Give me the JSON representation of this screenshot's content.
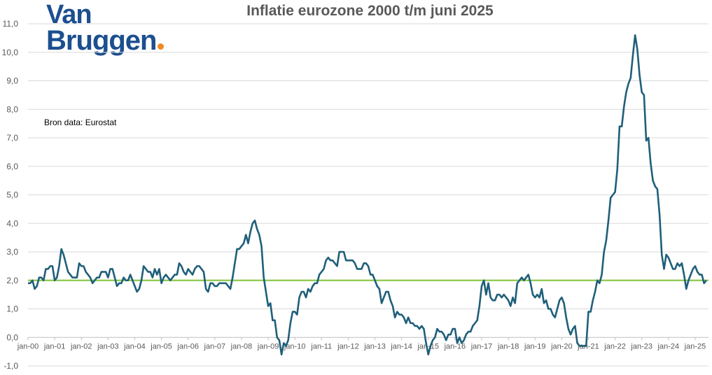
{
  "logo": {
    "line1": "Van",
    "line2": "Bruggen"
  },
  "source_note": "Bron data: Eurostat",
  "colors": {
    "series": "#1f5f7a",
    "target": "#8cc84b",
    "grid": "#d9d9d9",
    "logo": "#1c4f8f",
    "logo_dot": "#f08a24"
  },
  "chart_data": {
    "type": "line",
    "title": "Inflatie eurozone 2000 t/m juni 2025",
    "xlabel": "",
    "ylabel": "",
    "ylim": [
      -1,
      11
    ],
    "yticks": [
      "-1,0",
      "0,0",
      "1,0",
      "2,0",
      "3,0",
      "4,0",
      "5,0",
      "6,0",
      "7,0",
      "8,0",
      "9,0",
      "10,0",
      "11,0"
    ],
    "xticks": [
      "jan-00",
      "jan-01",
      "jan-02",
      "jan-03",
      "jan-04",
      "jan-05",
      "jan-06",
      "jan-07",
      "jan-08",
      "jan-09",
      "jan-10",
      "jan-11",
      "jan-12",
      "jan-13",
      "jan-14",
      "jan-15",
      "jan-16",
      "jan-17",
      "jan-18",
      "jan-19",
      "jan-20",
      "jan-21",
      "jan-22",
      "jan-23",
      "jan-24",
      "jan-25"
    ],
    "grid": true,
    "target_line": 2.0,
    "start": "2000-01",
    "series": [
      {
        "values": [
          1.9,
          1.9,
          2.0,
          1.7,
          1.8,
          2.1,
          2.1,
          2.0,
          2.4,
          2.4,
          2.5,
          2.5,
          2.0,
          2.1,
          2.5,
          3.1,
          2.9,
          2.6,
          2.3,
          2.2,
          2.1,
          2.1,
          2.1,
          2.6,
          2.5,
          2.5,
          2.3,
          2.2,
          2.1,
          1.9,
          2.0,
          2.1,
          2.1,
          2.3,
          2.3,
          2.3,
          2.1,
          2.4,
          2.4,
          2.1,
          1.8,
          1.9,
          1.9,
          2.1,
          2.0,
          2.0,
          2.2,
          2.0,
          1.8,
          1.6,
          1.7,
          2.0,
          2.5,
          2.4,
          2.3,
          2.3,
          2.1,
          2.4,
          2.2,
          2.4,
          1.9,
          2.1,
          2.2,
          2.1,
          2.0,
          2.1,
          2.2,
          2.2,
          2.6,
          2.5,
          2.3,
          2.2,
          2.4,
          2.3,
          2.2,
          2.4,
          2.5,
          2.5,
          2.4,
          2.3,
          1.7,
          1.6,
          1.9,
          1.9,
          1.8,
          1.8,
          1.9,
          1.9,
          1.9,
          1.9,
          1.8,
          1.7,
          2.1,
          2.6,
          3.1,
          3.1,
          3.2,
          3.3,
          3.6,
          3.3,
          3.7,
          4.0,
          4.1,
          3.8,
          3.6,
          3.2,
          2.1,
          1.6,
          1.1,
          1.2,
          0.6,
          0.6,
          0.0,
          -0.1,
          -0.6,
          -0.2,
          -0.3,
          -0.1,
          0.5,
          0.9,
          0.9,
          0.8,
          1.4,
          1.6,
          1.6,
          1.4,
          1.7,
          1.6,
          1.8,
          1.9,
          1.9,
          2.2,
          2.3,
          2.4,
          2.7,
          2.8,
          2.7,
          2.7,
          2.6,
          2.5,
          3.0,
          3.0,
          3.0,
          2.7,
          2.7,
          2.7,
          2.7,
          2.6,
          2.4,
          2.4,
          2.4,
          2.6,
          2.6,
          2.5,
          2.2,
          2.2,
          2.0,
          1.8,
          1.7,
          1.2,
          1.4,
          1.6,
          1.6,
          1.3,
          1.1,
          0.7,
          0.9,
          0.8,
          0.8,
          0.7,
          0.5,
          0.7,
          0.5,
          0.5,
          0.4,
          0.4,
          0.3,
          0.4,
          0.3,
          -0.2,
          -0.6,
          -0.3,
          -0.1,
          0.0,
          0.3,
          0.2,
          0.2,
          0.1,
          -0.1,
          0.1,
          0.1,
          0.3,
          0.3,
          -0.2,
          0.0,
          -0.2,
          -0.1,
          0.1,
          0.2,
          0.2,
          0.4,
          0.5,
          0.6,
          1.1,
          1.8,
          2.0,
          1.5,
          1.9,
          1.4,
          1.3,
          1.3,
          1.5,
          1.5,
          1.4,
          1.5,
          1.4,
          1.3,
          1.1,
          1.4,
          1.2,
          1.9,
          2.0,
          2.1,
          2.0,
          2.1,
          2.2,
          1.9,
          1.5,
          1.4,
          1.5,
          1.4,
          1.7,
          1.2,
          1.3,
          1.0,
          1.0,
          0.8,
          0.7,
          1.0,
          1.3,
          1.4,
          1.2,
          0.7,
          0.3,
          0.1,
          0.3,
          0.4,
          -0.2,
          -0.3,
          -0.3,
          -0.3,
          -0.3,
          0.9,
          0.9,
          1.3,
          1.6,
          2.0,
          1.9,
          2.2,
          3.0,
          3.4,
          4.1,
          4.9,
          5.0,
          5.1,
          5.9,
          7.4,
          7.4,
          8.1,
          8.6,
          8.9,
          9.1,
          9.9,
          10.6,
          10.1,
          9.2,
          8.6,
          8.5,
          6.9,
          7.0,
          6.1,
          5.5,
          5.3,
          5.2,
          4.3,
          2.9,
          2.4,
          2.9,
          2.8,
          2.6,
          2.4,
          2.4,
          2.6,
          2.5,
          2.6,
          2.2,
          1.7,
          2.0,
          2.2,
          2.4,
          2.5,
          2.3,
          2.2,
          2.2,
          1.9,
          2.0
        ]
      }
    ]
  }
}
